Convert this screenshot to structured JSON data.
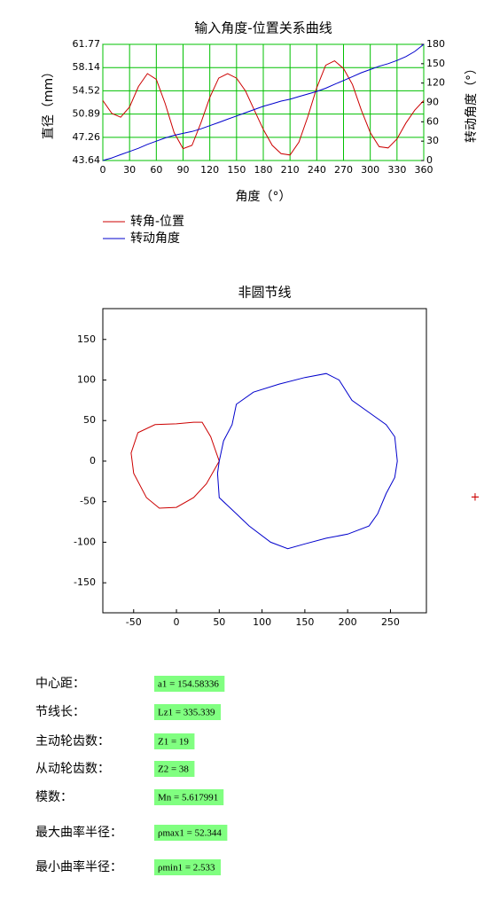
{
  "chart_data": [
    {
      "type": "line",
      "title": "输入角度-位置关系曲线",
      "x_label": "角度（°）",
      "y_label": "直径（mm）",
      "y2_label": "转动角度（°）",
      "x": [
        0,
        10,
        20,
        30,
        40,
        50,
        60,
        70,
        80,
        90,
        100,
        110,
        120,
        130,
        140,
        150,
        160,
        170,
        180,
        190,
        200,
        210,
        220,
        230,
        240,
        250,
        260,
        270,
        280,
        290,
        300,
        310,
        320,
        330,
        340,
        350,
        360
      ],
      "series": [
        {
          "name": "转角-位置",
          "color": "#cc0000",
          "values": [
            53.0,
            51.0,
            50.4,
            52.0,
            55.2,
            57.2,
            56.3,
            52.5,
            48.0,
            45.5,
            46.0,
            49.5,
            53.5,
            56.5,
            57.2,
            56.5,
            54.5,
            51.5,
            48.5,
            46.0,
            44.7,
            44.5,
            46.5,
            50.5,
            55.0,
            58.5,
            59.2,
            58.0,
            55.5,
            51.5,
            48.0,
            45.8,
            45.6,
            47.0,
            49.5,
            51.5,
            53.0
          ]
        },
        {
          "name": "转动角度",
          "color": "#0000cc",
          "axis": "y2",
          "values": [
            0,
            4,
            9,
            14,
            19,
            25,
            30,
            35,
            39,
            42,
            45,
            49,
            54,
            59,
            64,
            69,
            74,
            79,
            84,
            88,
            92,
            95,
            99,
            103,
            107,
            112,
            118,
            124,
            130,
            136,
            141,
            146,
            150,
            155,
            161,
            169,
            180
          ]
        }
      ],
      "xlim": [
        0,
        360
      ],
      "xticks": [
        0,
        30,
        60,
        90,
        120,
        150,
        180,
        210,
        240,
        270,
        300,
        330,
        360
      ],
      "ylim": [
        43.64,
        61.77
      ],
      "yticks": [
        43.64,
        47.26,
        50.89,
        54.52,
        58.14,
        61.77
      ],
      "y2lim": [
        0,
        180
      ],
      "y2ticks": [
        0,
        30,
        60,
        90,
        120,
        150,
        180
      ],
      "grid": true,
      "grid_color": "#00c000",
      "legend": "bottom-left"
    },
    {
      "type": "line",
      "title": "非圆节线",
      "series": [
        {
          "color": "#cc0000",
          "x": [
            50,
            35,
            20,
            0,
            -20,
            -35,
            -50,
            -53,
            -45,
            -25,
            0,
            20,
            30,
            40,
            50
          ],
          "values": [
            0,
            -28,
            -45,
            -57,
            -58,
            -45,
            -15,
            10,
            35,
            45,
            46,
            48,
            48,
            30,
            0
          ]
        },
        {
          "color": "#0000cc",
          "x": [
            50,
            55,
            65,
            70,
            90,
            120,
            150,
            175,
            190,
            205,
            225,
            245,
            255,
            258,
            255,
            245,
            235,
            225,
            200,
            175,
            150,
            130,
            110,
            85,
            65,
            50,
            48,
            50
          ],
          "values": [
            0,
            25,
            45,
            70,
            85,
            95,
            103,
            108,
            100,
            75,
            60,
            45,
            30,
            0,
            -20,
            -40,
            -65,
            -80,
            -90,
            -95,
            -102,
            -108,
            -100,
            -80,
            -60,
            -45,
            -15,
            0
          ]
        }
      ],
      "xlim": [
        -86,
        292
      ],
      "xticks": [
        -50,
        0,
        50,
        100,
        150,
        200,
        250
      ],
      "ylim": [
        -187,
        188
      ],
      "yticks": [
        -150,
        -100,
        -50,
        0,
        50,
        100,
        150
      ],
      "grid": false
    }
  ],
  "results": [
    {
      "label": "中心距：",
      "value": "a1 = 154.58336"
    },
    {
      "label": "节线长：",
      "value": "Lz1 = 335.339"
    },
    {
      "label": "主动轮齿数：",
      "value": "Z1 = 19"
    },
    {
      "label": "从动轮齿数：",
      "value": "Z2 = 38"
    },
    {
      "label": "模数：",
      "value": "Mn = 5.617991"
    },
    {
      "label": "最大曲率半径：",
      "value": "ρmax1 = 52.344"
    },
    {
      "label": "最小曲率半径：",
      "value": "ρmin1 = 2.533"
    }
  ]
}
